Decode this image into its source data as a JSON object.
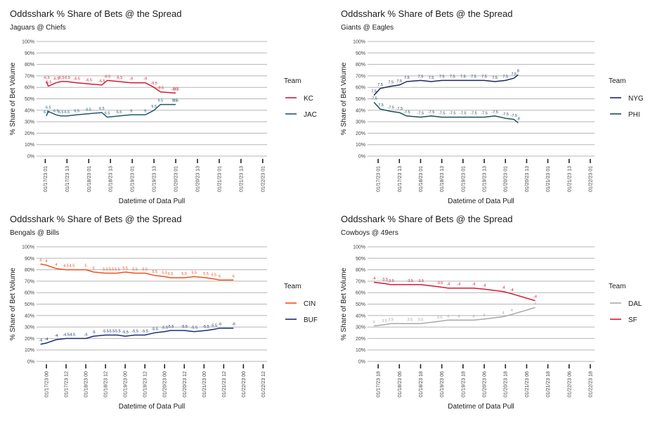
{
  "chart_data": [
    {
      "type": "line",
      "title": "Oddsshark % Share of Bets @ the Spread",
      "subtitle": "Jaguars @ Chiefs",
      "xlabel": "Datetime of Data Pull",
      "ylabel": "% Share of Bet Volume",
      "legend_title": "Team",
      "ylim": [
        0,
        100
      ],
      "yticks": [
        "0%",
        "10%",
        "20%",
        "30%",
        "40%",
        "50%",
        "60%",
        "70%",
        "80%",
        "90%",
        "100%"
      ],
      "x_ticks": [
        "01/17/23 01",
        "01/17/23 13",
        "01/18/23 01",
        "01/18/23 13",
        "01/19/23 01",
        "01/19/23 13",
        "01/20/23 01",
        "01/20/23 13",
        "01/21/23 01",
        "01/21/23 13",
        "01/22/23 01"
      ],
      "x": [
        0.05,
        0.14,
        0.5,
        0.72,
        1.0,
        1.45,
        2.0,
        2.6,
        2.85,
        3.4,
        3.95,
        4.6,
        5.0,
        5.3,
        5.95,
        6.0
      ],
      "series": [
        {
          "name": "KC",
          "color": "#d01c33",
          "values": [
            65,
            61,
            64,
            65,
            65,
            64,
            63,
            62,
            66,
            65,
            64,
            64,
            60,
            56,
            55,
            55
          ],
          "labels": [
            "-6.5",
            "-6.5",
            "-6.5",
            "-6.5",
            "-6.5",
            "-6.5",
            "-6.5",
            "-6.5",
            "-6.5",
            "-6.5",
            "-9",
            "-9",
            "-9.5",
            "-9.5",
            "-9.5",
            "-9.5"
          ]
        },
        {
          "name": "JAC",
          "color": "#1f5a6e",
          "values": [
            35,
            39,
            36,
            35,
            35,
            36,
            37,
            38,
            34,
            35,
            36,
            36,
            40,
            45,
            45,
            45
          ],
          "labels": [
            "6.5",
            "6.5",
            "6.5",
            "6.5",
            "6.5",
            "6.5",
            "6.5",
            "6.5",
            "6.5",
            "6.5",
            "9",
            "9",
            "9.5",
            "9.5",
            "9.5",
            "9.5"
          ]
        }
      ]
    },
    {
      "type": "line",
      "title": "Oddsshark % Share of Bets @ the Spread",
      "subtitle": "Giants @ Eagles",
      "xlabel": "Datetime of Data Pull",
      "ylabel": "% Share of Bet Volume",
      "legend_title": "Team",
      "ylim": [
        0,
        100
      ],
      "yticks": [
        "0%",
        "10%",
        "20%",
        "30%",
        "40%",
        "50%",
        "60%",
        "70%",
        "80%",
        "90%",
        "100%"
      ],
      "x_ticks": [
        "01/17/23 01",
        "01/17/23 13",
        "01/18/23 01",
        "01/18/23 13",
        "01/19/23 01",
        "01/19/23 13",
        "01/20/23 01",
        "01/20/23 13",
        "01/21/23 01",
        "01/21/23 13",
        "01/22/23 01"
      ],
      "x": [
        -0.2,
        0.1,
        0.6,
        1.0,
        1.35,
        2.0,
        2.5,
        3.0,
        3.5,
        4.0,
        4.5,
        5.0,
        5.5,
        6.0,
        6.4,
        6.6
      ],
      "series": [
        {
          "name": "NYG",
          "color": "#1c2a5e",
          "values": [
            53,
            59,
            61,
            62,
            65,
            66,
            65,
            66,
            66,
            66,
            66,
            66,
            65,
            66,
            68,
            71
          ],
          "labels": [
            "7.5",
            "7.5",
            "7.5",
            "7.5",
            "7.5",
            "7.5",
            "7.5",
            "7.5",
            "7.5",
            "7.5",
            "7.5",
            "7.5",
            "7.5",
            "7.5",
            "7.5",
            "8"
          ]
        },
        {
          "name": "PHI",
          "color": "#1c4f55",
          "values": [
            47,
            41,
            39,
            38,
            35,
            34,
            35,
            34,
            34,
            34,
            34,
            34,
            35,
            33,
            32,
            29
          ],
          "labels": [
            "-7.5",
            "-7.5",
            "-7.5",
            "-7.5",
            "-7.5",
            "-7.5",
            "-7.5",
            "-7.5",
            "-7.5",
            "-7.5",
            "-7.5",
            "-7.5",
            "-7.5",
            "-7.5",
            "-7.5",
            "-8"
          ]
        }
      ]
    },
    {
      "type": "line",
      "title": "Oddsshark % Share of Bets @ the Spread",
      "subtitle": "Bengals @ Bills",
      "xlabel": "Datetime of Data Pull",
      "ylabel": "% Share of Bet Volume",
      "legend_title": "Team",
      "ylim": [
        0,
        100
      ],
      "yticks": [
        "0%",
        "10%",
        "20%",
        "30%",
        "40%",
        "50%",
        "60%",
        "70%",
        "80%",
        "90%",
        "100%"
      ],
      "x_ticks": [
        "01/17/23 00",
        "01/17/23 12",
        "01/18/23 00",
        "01/18/23 12",
        "01/19/23 00",
        "01/19/23 12",
        "01/20/23 00",
        "01/20/23 12",
        "01/21/23 00",
        "01/21/23 12",
        "01/22/23 00",
        "01/22/23 12"
      ],
      "x": [
        -0.3,
        0.0,
        0.5,
        1.0,
        1.3,
        2.0,
        2.4,
        3.0,
        3.3,
        3.6,
        4.0,
        4.5,
        5.0,
        5.5,
        6.0,
        6.3,
        7.0,
        7.5,
        8.1,
        8.5,
        8.8,
        9.5
      ],
      "series": [
        {
          "name": "CIN",
          "color": "#f0501e",
          "values": [
            85,
            84,
            81,
            80,
            80,
            80,
            78,
            77,
            77,
            77,
            78,
            77,
            77,
            75,
            74,
            73,
            73,
            74,
            73,
            72,
            71,
            71
          ],
          "labels": [
            "4",
            "4",
            "4",
            "4.5",
            "4.5",
            "5",
            "5",
            "5.5",
            "5.5",
            "5.5",
            "5.5",
            "5.5",
            "5.5",
            "5.5",
            "5.5",
            "5.5",
            "5.5",
            "5.5",
            "5.5",
            "5.5",
            "6",
            "6"
          ]
        },
        {
          "name": "BUF",
          "color": "#1a2f78",
          "values": [
            15,
            16,
            19,
            20,
            20,
            20,
            22,
            23,
            23,
            23,
            22,
            23,
            23,
            25,
            26,
            27,
            27,
            26,
            27,
            28,
            29,
            29
          ],
          "labels": [
            "-4",
            "-4",
            "-4",
            "-4.5",
            "-4.5",
            "-5",
            "-5",
            "-5.5",
            "-5.5",
            "-5.5",
            "-5.5",
            "-5.5",
            "-5.5",
            "-5.5",
            "-5.5",
            "-5.5",
            "-5.5",
            "-5.5",
            "-5.5",
            "-5.5",
            "-6",
            "-6"
          ]
        }
      ]
    },
    {
      "type": "line",
      "title": "Oddsshark % Share of Bets @ the Spread",
      "subtitle": "Cowboys @ 49ers",
      "xlabel": "Datetime of Data Pull",
      "ylabel": "% Share of Bet Volume",
      "legend_title": "Team",
      "ylim": [
        0,
        100
      ],
      "yticks": [
        "0%",
        "10%",
        "20%",
        "30%",
        "40%",
        "50%",
        "60%",
        "70%",
        "80%",
        "90%",
        "100%"
      ],
      "x_ticks": [
        "01/17/23 18",
        "01/18/23 06",
        "01/18/23 18",
        "01/19/23 06",
        "01/19/23 18",
        "01/20/23 06",
        "01/20/23 18",
        "01/21/23 06",
        "01/21/23 18",
        "01/22/23 06",
        "01/22/23 18"
      ],
      "x": [
        -0.2,
        0.3,
        0.6,
        1.5,
        2.0,
        2.9,
        3.3,
        3.8,
        4.5,
        5.0,
        5.9,
        6.3,
        7.4
      ],
      "series": [
        {
          "name": "DAL",
          "color": "#a8a8a8",
          "values": [
            31,
            32,
            33,
            33,
            33,
            35,
            36,
            36,
            36,
            37,
            39,
            41,
            47
          ],
          "labels": [
            "4",
            "3.5",
            "3.5",
            "3.5",
            "3.5",
            "3.5",
            "4",
            "4",
            "4",
            "4",
            "4",
            "4",
            "4"
          ]
        },
        {
          "name": "SF",
          "color": "#d01c33",
          "values": [
            69,
            68,
            67,
            67,
            67,
            65,
            64,
            64,
            64,
            63,
            61,
            59,
            53
          ],
          "labels": [
            "-4",
            "-3.5",
            "-3.5",
            "-3.5",
            "-3.5",
            "-3.5",
            "-4",
            "-4",
            "-4",
            "-4",
            "-4",
            "-4",
            "-4"
          ]
        }
      ]
    }
  ]
}
